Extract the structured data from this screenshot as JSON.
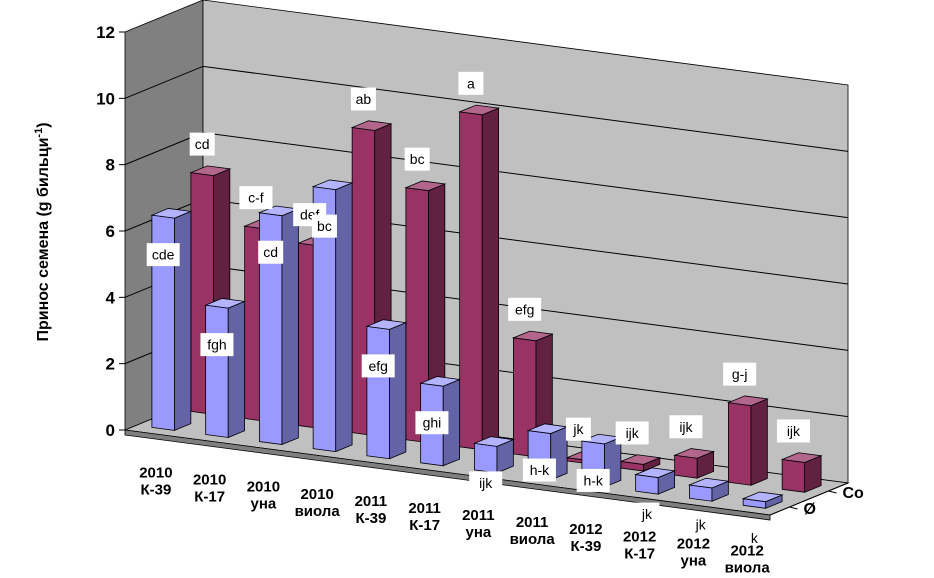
{
  "chart_data": {
    "type": "bar",
    "subtype": "3d-clustered-depth",
    "ylabel": "Принос семена (g бильци",
    "ylabel_sup": "-1",
    "ylabel_close": ")",
    "ylim": [
      0,
      12
    ],
    "yticks": [
      "0",
      "2",
      "4",
      "6",
      "8",
      "10",
      "12"
    ],
    "grid": true,
    "categories": [
      [
        "2010",
        "К-39"
      ],
      [
        "2010",
        "К-17"
      ],
      [
        "2010",
        "уна"
      ],
      [
        "2010",
        "виола"
      ],
      [
        "2011",
        "К-39"
      ],
      [
        "2011",
        "К-17"
      ],
      [
        "2011",
        "уна"
      ],
      [
        "2011",
        "виола"
      ],
      [
        "2012",
        "К-39"
      ],
      [
        "2012",
        "К-17"
      ],
      [
        "2012",
        "уна"
      ],
      [
        "2012",
        "виола"
      ]
    ],
    "series": [
      {
        "name": "Ø",
        "color": "#9999ff",
        "values": [
          6.4,
          3.9,
          6.9,
          7.9,
          3.9,
          2.4,
          0.8,
          1.4,
          1.3,
          0.5,
          0.4,
          0.2
        ],
        "labels": [
          "cde",
          "fgh",
          "cd",
          "bc",
          "efg",
          "ghi",
          "ijk",
          "h-k",
          "h-k",
          "jk",
          "jk",
          "k"
        ]
      },
      {
        "name": "Co",
        "color": "#993366",
        "values": [
          7.2,
          5.8,
          5.5,
          9.2,
          7.6,
          10.1,
          3.5,
          0.1,
          0.2,
          0.6,
          2.4,
          0.9
        ],
        "labels": [
          "cd",
          "c-f",
          "def",
          "ab",
          "bc",
          "a",
          "efg",
          "jk",
          "ijk",
          "ijk",
          "g-j",
          "ijk"
        ]
      }
    ]
  }
}
